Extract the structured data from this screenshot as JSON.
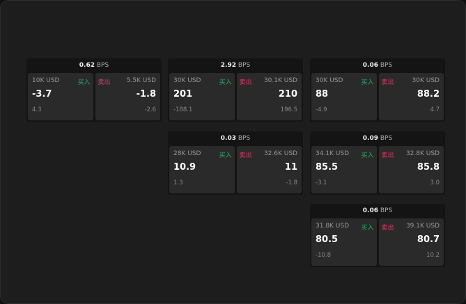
{
  "unit": "BPS",
  "buy_label": "买入",
  "sell_label": "卖出",
  "colors": {
    "buy": "#2fa860",
    "sell": "#e0386a"
  },
  "widgets": [
    {
      "spread": "0.62",
      "bid_size": "10K USD",
      "bid": "-3.7",
      "bid_change": "4.3",
      "ask_size": "5.5K USD",
      "ask": "-1.8",
      "ask_change": "-2.6"
    },
    {
      "spread": "2.92",
      "bid_size": "30K USD",
      "bid": "201",
      "bid_change": "-188.1",
      "ask_size": "30.1K USD",
      "ask": "210",
      "ask_change": "196.5"
    },
    {
      "spread": "0.06",
      "bid_size": "30K USD",
      "bid": "88",
      "bid_change": "-4.9",
      "ask_size": "30K USD",
      "ask": "88.2",
      "ask_change": "4.7"
    },
    {
      "spread": "0.03",
      "bid_size": "28K USD",
      "bid": "10.9",
      "bid_change": "1.3",
      "ask_size": "32.6K USD",
      "ask": "11",
      "ask_change": "-1.8"
    },
    {
      "spread": "0.09",
      "bid_size": "34.1K USD",
      "bid": "85.5",
      "bid_change": "-3.1",
      "ask_size": "32.8K USD",
      "ask": "85.8",
      "ask_change": "3.0"
    },
    {
      "spread": "0.06",
      "bid_size": "31.8K USD",
      "bid": "80.5",
      "bid_change": "-10.8",
      "ask_size": "39.1K USD",
      "ask": "80.7",
      "ask_change": "10.2"
    }
  ]
}
